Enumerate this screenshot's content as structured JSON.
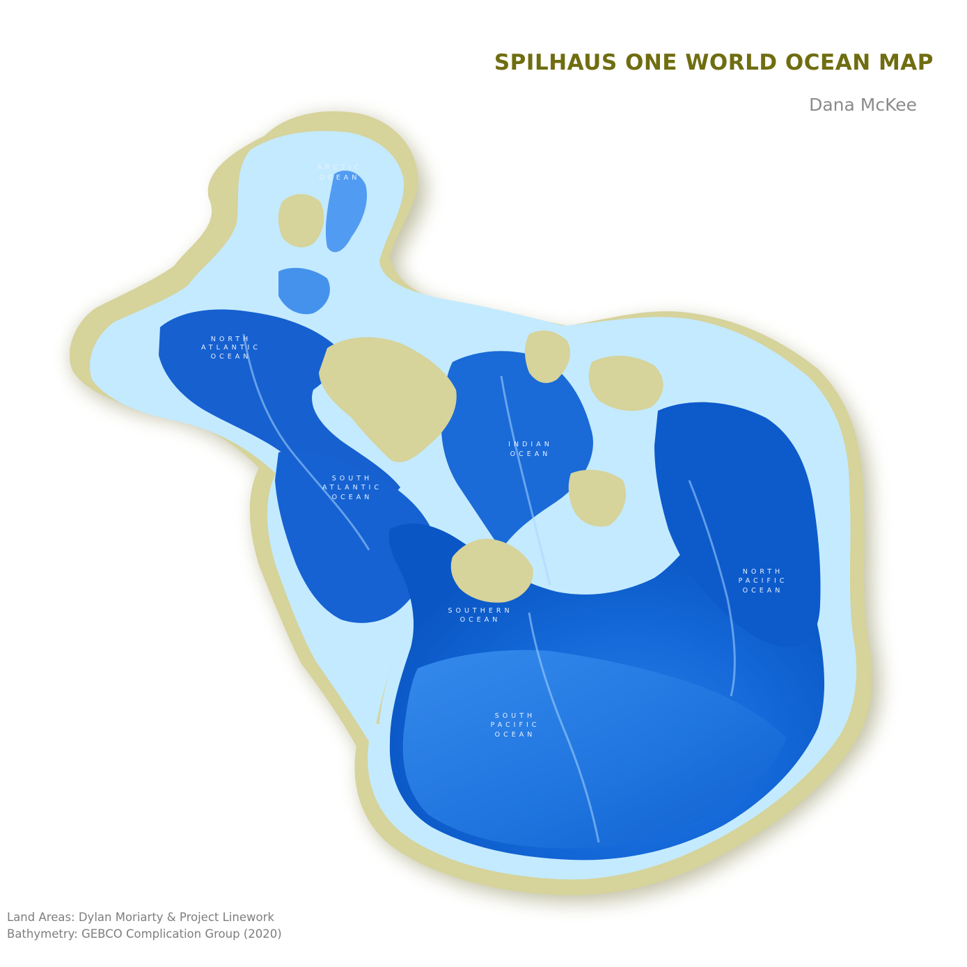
{
  "header": {
    "title": "SPILHAUS ONE WORLD OCEAN MAP",
    "author": "Dana McKee"
  },
  "colors": {
    "title": "#6f6d10",
    "author": "#8b8b8b",
    "land": "#d6d39b",
    "shelf": "#c4eaff",
    "deep_ocean": "#0a5fd0",
    "mid_ocean": "#2f86e8",
    "shadow": "#9a9a6a"
  },
  "ocean_labels": {
    "arctic": [
      "ARCTIC",
      "OCEAN"
    ],
    "north_atlantic": [
      "NORTH",
      "ATLANTIC",
      "OCEAN"
    ],
    "indian": [
      "INDIAN",
      "OCEAN"
    ],
    "south_atlantic": [
      "SOUTH",
      "ATLANTIC",
      "OCEAN"
    ],
    "southern": [
      "SOUTHERN",
      "OCEAN"
    ],
    "north_pacific": [
      "NORTH",
      "PACIFIC",
      "OCEAN"
    ],
    "south_pacific": [
      "SOUTH",
      "PACIFIC",
      "OCEAN"
    ]
  },
  "credits": {
    "land": "Land Areas: Dylan Moriarty & Project Linework",
    "bathymetry": "Bathymetry: GEBCO Complication Group (2020)"
  }
}
